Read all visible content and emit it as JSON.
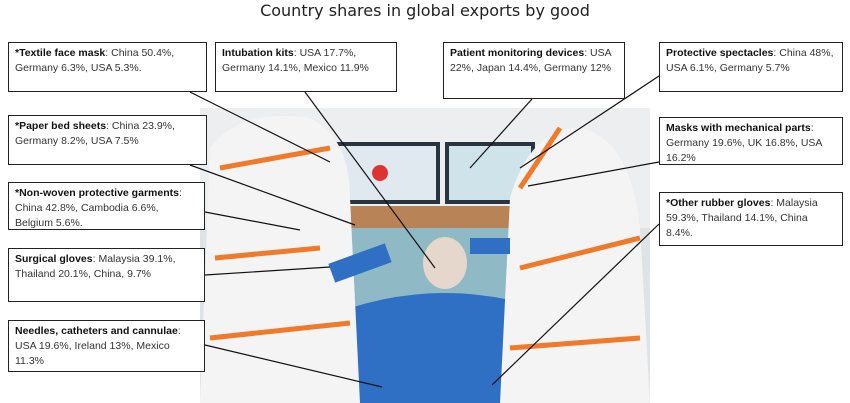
{
  "title": "Country shares in global exports by good",
  "annotations": [
    {
      "id": "textile-face-mask",
      "label": "*Textile face mask",
      "text": ": China 50.4%, Germany 6.3%, USA 5.3%."
    },
    {
      "id": "intubation-kits",
      "label": "Intubation kits",
      "text": ": USA 17.7%, Germany 14.1%, Mexico 11.9%"
    },
    {
      "id": "patient-monitoring-devices",
      "label": "Patient monitoring devices",
      "text": ": USA 22%, Japan 14.4%, Germany 12%"
    },
    {
      "id": "protective-spectacles",
      "label": "Protective spectacles",
      "text": ": China 48%, USA 6.1%, Germany 5.7%"
    },
    {
      "id": "paper-bed-sheets",
      "label": "*Paper bed sheets",
      "text": ": China 23.9%, Germany 8.2%, USA 7.5%"
    },
    {
      "id": "masks-mechanical-parts",
      "label": "Masks with mechanical parts",
      "text": ": Germany 19.6%, UK 16.8%, USA 16.2%"
    },
    {
      "id": "non-woven-garments",
      "label": "*Non-woven protective garments",
      "text": ": China 42.8%, Cambodia 6.6%, Belgium 5.6%."
    },
    {
      "id": "other-rubber-gloves",
      "label": "*Other rubber gloves",
      "text": ": Malaysia 59.3%, Thailand 14.1%, China 8.4%."
    },
    {
      "id": "surgical-gloves",
      "label": "Surgical gloves",
      "text": ": Malaysia 39.1%, Thailand 20.1%, China, 9.7%"
    },
    {
      "id": "needles-catheters",
      "label": "Needles, catheters and cannulae",
      "text": ": USA 19.6%, Ireland 13%, Mexico 11.3%"
    }
  ],
  "colors": {
    "suit": "#f4f4f4",
    "tape": "#f07a2a",
    "gown": "#2f6fc4",
    "monitor": "#2a3340"
  }
}
